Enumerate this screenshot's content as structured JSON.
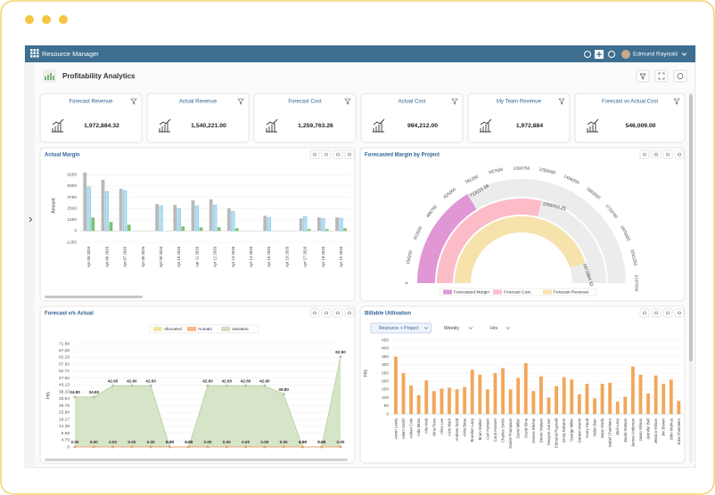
{
  "header": {
    "app_name": "Resource Manager",
    "user": "Edmund Raynold"
  },
  "page_title": "Profitability Analytics",
  "kpis": [
    {
      "title": "Forecast Revenue",
      "value": "1,972,884.32"
    },
    {
      "title": "Actual Revenue",
      "value": "1,540,221.00"
    },
    {
      "title": "Forecast Cost",
      "value": "1,259,763.26"
    },
    {
      "title": "Actual Cost",
      "value": "994,212.00"
    },
    {
      "title": "My Team Revenue",
      "value": "1,972,884"
    },
    {
      "title": "Forecast vs Actual Cost",
      "value": "546,009.00"
    }
  ],
  "charts": [
    {
      "type": "bar",
      "title": "Actual Margin",
      "y_label": "Amount",
      "categories": [
        "Apr 05 2026",
        "Apr 06 2026",
        "Apr 07 2026",
        "Apr 08 2026",
        "Apr 09 2026",
        "Apr 10 2026",
        "Apr 11 2026",
        "Apr 12 2026",
        "Apr 13 2026",
        "Apr 14 2026",
        "Apr 15 2026",
        "Apr 16 2026",
        "Apr 17 2026",
        "Apr 18 2026",
        "Apr 19 2026"
      ],
      "series": [
        {
          "color": "#b9b9b9",
          "values": [
            6500,
            5700,
            4700,
            0,
            3000,
            2900,
            3400,
            3500,
            2500,
            0,
            1700,
            0,
            1400,
            1500,
            1500
          ]
        },
        {
          "color": "#b3def2",
          "values": [
            4900,
            4400,
            4500,
            0,
            2800,
            2500,
            2800,
            2900,
            2200,
            0,
            1500,
            0,
            1600,
            1400,
            1400
          ]
        },
        {
          "color": "#7cc46a",
          "values": [
            1500,
            1000,
            700,
            0,
            0,
            500,
            400,
            400,
            300,
            0,
            0,
            0,
            200,
            200,
            300
          ]
        }
      ],
      "ylim": [
        -1250,
        6875
      ],
      "yticks": [
        -1250,
        0,
        1250,
        2500,
        3750,
        5000,
        6250
      ],
      "grid": true
    },
    {
      "type": "radial_bar",
      "title": "Forecasted Margin by Project",
      "series": [
        {
          "name": "Forecasted Margin",
          "color": "#e196d6",
          "values": [
            713121.06
          ]
        },
        {
          "name": "Forecast Cost",
          "color": "#fbbcc8",
          "values": [
            1259763.25
          ]
        },
        {
          "name": "Forecast Revenue",
          "color": "#f6e2ab",
          "values": [
            1972884.32
          ]
        }
      ],
      "xlim": [
        0,
        2187500
      ],
      "xticks": [
        0,
        156250,
        312500,
        468750,
        625000,
        781250,
        937500,
        1093750,
        1250000,
        1406250,
        1562500,
        1718750,
        1875000,
        2031250,
        2187500
      ]
    },
    {
      "type": "area",
      "title": "Forecast v/s Actual",
      "y_label": "Hrs",
      "series": [
        {
          "name": "Allocated",
          "color": "#f6e6a6",
          "values": [
            0,
            0,
            0,
            0,
            0,
            0,
            0,
            0,
            0,
            0,
            0,
            0,
            0,
            0,
            0
          ]
        },
        {
          "name": "Actuals",
          "color": "#f5b98e",
          "values": [
            0,
            0,
            0,
            0,
            0,
            0,
            0,
            0,
            0,
            0,
            0,
            0,
            0,
            0,
            0
          ],
          "value_labels": [
            "0.00",
            "0.00",
            "0.00",
            "0.00",
            "0.00",
            "0.00",
            "0.00",
            "0.00",
            "0.00",
            "0.00",
            "0.00",
            "0.00",
            "0.00",
            "0.00",
            "0.00"
          ]
        },
        {
          "name": "Variation",
          "color": "#cfe0bd",
          "values": [
            34.8,
            34.8,
            42.6,
            42.6,
            42.6,
            0,
            0,
            42.6,
            42.6,
            42.6,
            42.6,
            36.8,
            0,
            0,
            62.8
          ],
          "value_labels": [
            "34.80",
            "34.80",
            "42.60",
            "42.60",
            "42.60",
            "0.00",
            "0.00",
            "42.60",
            "42.60",
            "42.60",
            "42.60",
            "36.80",
            "0.00",
            "0.00",
            "62.80"
          ]
        }
      ],
      "ylim": [
        0,
        71.88
      ],
      "yticks": [
        0,
        4.79,
        9.58,
        14.38,
        19.17,
        23.96,
        28.75,
        33.54,
        38.33,
        43.13,
        47.92,
        52.71,
        {
          "value": 57.5,
          "label": "57.50"
        },
        62.29,
        67.08,
        71.88
      ],
      "grid": true
    },
    {
      "type": "bar",
      "title": "Billable Utilisation",
      "y_label": "Hrs",
      "controls": [
        "Resource + Project",
        "Weekly",
        "Hrs"
      ],
      "categories": [
        "Aaron Lewis",
        "Adam Smith",
        "Adrian Cole",
        "Aida Moss",
        "Alia Watt",
        "Alina Ross",
        "Alina Lee",
        "Alvin Mark",
        "Andrew Scott",
        "Anita Bose",
        "Brandon Lacy",
        "Brian Walker",
        "Carl Hansen",
        "Carol Hansen",
        "Charles Smith",
        "Daniel Thompson",
        "David Miller",
        "David Kline",
        "Dennis Ritchie",
        "Deron Watson",
        "Dwayne Garner",
        "Edmund Raynold",
        "Emily Roberts",
        "George Miller",
        "Gordon Marsh",
        "Harry Hoult",
        "Helen Barr",
        "Isaac Watts",
        "Isabel Chambers",
        "Jack Lacy",
        "Jacob Watson",
        "James Anderson",
        "Jason Wilson",
        "Jennifer Bell",
        "Jessica Wilson",
        "Jim Brown",
        "John Markus",
        "Julia Chambers"
      ],
      "series": [
        {
          "color": "#f2a65a",
          "values": [
            350,
            250,
            175,
            115,
            205,
            140,
            155,
            160,
            150,
            165,
            270,
            240,
            150,
            250,
            280,
            150,
            220,
            310,
            140,
            230,
            100,
            170,
            225,
            210,
            120,
            185,
            95,
            185,
            190,
            75,
            105,
            290,
            240,
            125,
            235,
            185,
            210,
            80
          ]
        }
      ],
      "ylim": [
        0,
        500
      ],
      "yticks": [
        0,
        50,
        100,
        150,
        200,
        250,
        300,
        350,
        400,
        450
      ],
      "grid": true
    }
  ]
}
